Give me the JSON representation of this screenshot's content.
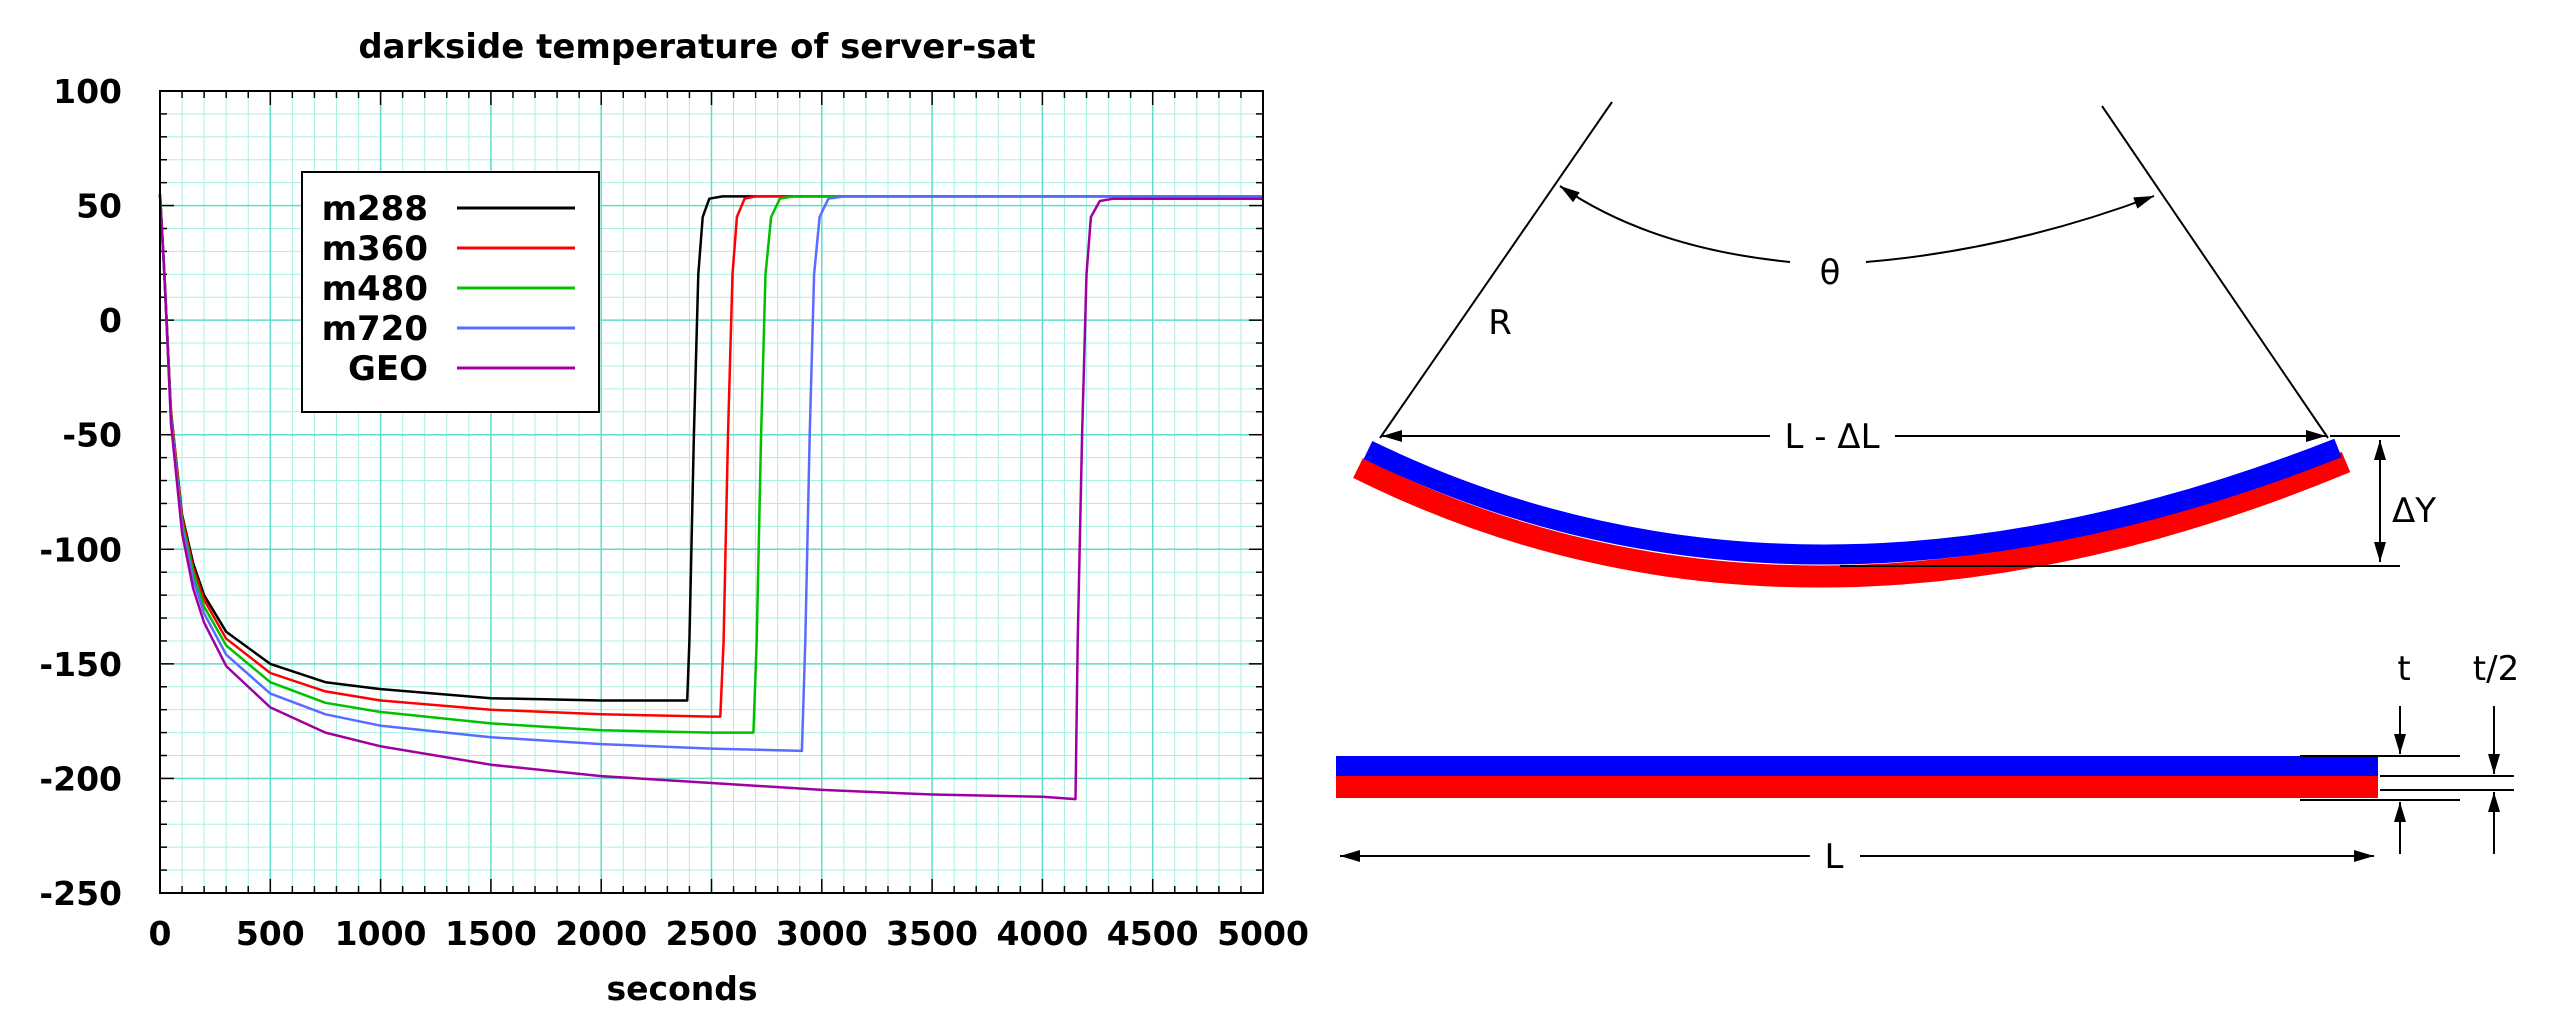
{
  "chart_data": {
    "type": "line",
    "title": "darkside temperature of server-sat",
    "xlabel": "seconds",
    "ylabel": "",
    "xlim": [
      0,
      5000
    ],
    "ylim": [
      -250,
      100
    ],
    "x_ticks": [
      0,
      500,
      1000,
      1500,
      2000,
      2500,
      3000,
      3500,
      4000,
      4500,
      5000
    ],
    "y_ticks": [
      100,
      50,
      0,
      -50,
      -100,
      -150,
      -200,
      -250
    ],
    "grid": true,
    "legend_position": "upper-left",
    "series": [
      {
        "name": "m288",
        "color": "#000000",
        "points": [
          [
            0,
            55
          ],
          [
            20,
            20
          ],
          [
            50,
            -40
          ],
          [
            100,
            -85
          ],
          [
            150,
            -106
          ],
          [
            200,
            -120
          ],
          [
            300,
            -136
          ],
          [
            500,
            -150
          ],
          [
            750,
            -158
          ],
          [
            1000,
            -161
          ],
          [
            1500,
            -165
          ],
          [
            2000,
            -166
          ],
          [
            2390,
            -166
          ],
          [
            2400,
            -140
          ],
          [
            2420,
            -50
          ],
          [
            2440,
            20
          ],
          [
            2460,
            45
          ],
          [
            2490,
            53
          ],
          [
            2550,
            54
          ],
          [
            5000,
            54
          ]
        ]
      },
      {
        "name": "m360",
        "color": "#ff0000",
        "points": [
          [
            0,
            55
          ],
          [
            20,
            20
          ],
          [
            50,
            -40
          ],
          [
            100,
            -86
          ],
          [
            150,
            -108
          ],
          [
            200,
            -122
          ],
          [
            300,
            -139
          ],
          [
            500,
            -154
          ],
          [
            750,
            -162
          ],
          [
            1000,
            -166
          ],
          [
            1500,
            -170
          ],
          [
            2000,
            -172
          ],
          [
            2500,
            -173
          ],
          [
            2540,
            -173
          ],
          [
            2555,
            -140
          ],
          [
            2575,
            -50
          ],
          [
            2595,
            20
          ],
          [
            2615,
            45
          ],
          [
            2650,
            53
          ],
          [
            2700,
            54
          ],
          [
            5000,
            54
          ]
        ]
      },
      {
        "name": "m480",
        "color": "#00c000",
        "points": [
          [
            0,
            55
          ],
          [
            20,
            20
          ],
          [
            50,
            -42
          ],
          [
            100,
            -88
          ],
          [
            150,
            -110
          ],
          [
            200,
            -125
          ],
          [
            300,
            -142
          ],
          [
            500,
            -158
          ],
          [
            750,
            -167
          ],
          [
            1000,
            -171
          ],
          [
            1500,
            -176
          ],
          [
            2000,
            -179
          ],
          [
            2500,
            -180
          ],
          [
            2690,
            -180
          ],
          [
            2705,
            -140
          ],
          [
            2725,
            -50
          ],
          [
            2745,
            20
          ],
          [
            2770,
            45
          ],
          [
            2810,
            53
          ],
          [
            2870,
            54
          ],
          [
            5000,
            54
          ]
        ]
      },
      {
        "name": "m720",
        "color": "#5a6cff",
        "points": [
          [
            0,
            55
          ],
          [
            20,
            20
          ],
          [
            50,
            -43
          ],
          [
            100,
            -90
          ],
          [
            150,
            -113
          ],
          [
            200,
            -128
          ],
          [
            300,
            -146
          ],
          [
            500,
            -163
          ],
          [
            750,
            -172
          ],
          [
            1000,
            -177
          ],
          [
            1500,
            -182
          ],
          [
            2000,
            -185
          ],
          [
            2500,
            -187
          ],
          [
            2910,
            -188
          ],
          [
            2925,
            -140
          ],
          [
            2945,
            -50
          ],
          [
            2965,
            20
          ],
          [
            2990,
            45
          ],
          [
            3030,
            53
          ],
          [
            3100,
            54
          ],
          [
            5000,
            54
          ]
        ]
      },
      {
        "name": "GEO",
        "color": "#a000a0",
        "points": [
          [
            0,
            55
          ],
          [
            20,
            20
          ],
          [
            50,
            -45
          ],
          [
            100,
            -93
          ],
          [
            150,
            -117
          ],
          [
            200,
            -132
          ],
          [
            300,
            -151
          ],
          [
            500,
            -169
          ],
          [
            750,
            -180
          ],
          [
            1000,
            -186
          ],
          [
            1500,
            -194
          ],
          [
            2000,
            -199
          ],
          [
            2500,
            -202
          ],
          [
            3000,
            -205
          ],
          [
            3500,
            -207
          ],
          [
            4000,
            -208
          ],
          [
            4150,
            -209
          ],
          [
            4160,
            -140
          ],
          [
            4180,
            -50
          ],
          [
            4200,
            20
          ],
          [
            4220,
            45
          ],
          [
            4260,
            52
          ],
          [
            4320,
            53
          ],
          [
            5000,
            53
          ]
        ]
      }
    ]
  },
  "diagram": {
    "labels": {
      "theta": "θ",
      "radius": "R",
      "chord": "L - ΔL",
      "deflection": "ΔY",
      "thickness": "t",
      "half_thickness": "t/2",
      "length": "L"
    },
    "colors": {
      "top_layer": "#0000ff",
      "bottom_layer": "#ff0000",
      "line": "#000000"
    }
  }
}
